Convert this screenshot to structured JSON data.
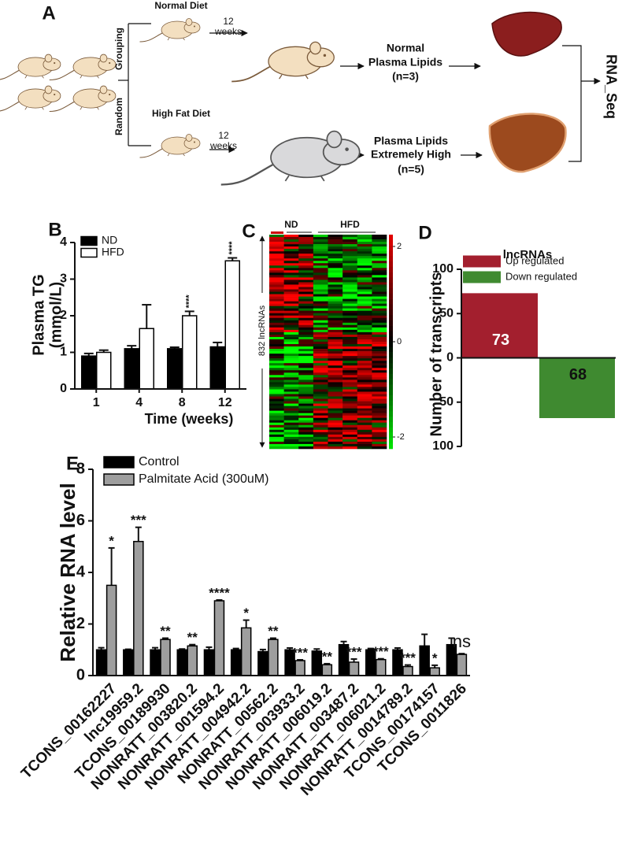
{
  "diagram": {
    "label": "A",
    "normal_diet": "Normal Diet",
    "high_fat_diet": "High Fat Diet",
    "durations": [
      [
        "12",
        "weeks"
      ],
      [
        "12",
        "weeks"
      ]
    ],
    "grouping": "Grouping",
    "random": "Random",
    "normal_result": [
      "Normal",
      "Plasma Lipids",
      "(n=3)"
    ],
    "high_result": [
      "Plasma Lipids",
      "Extremely High",
      "(n=5)"
    ],
    "output": "RNA_Seq"
  },
  "chart_data": [
    {
      "type": "bar",
      "panel_label": "B",
      "y_label": [
        "Plasma TG",
        "(mmol/L)"
      ],
      "x_label": "Time (weeks)",
      "categories": [
        "1",
        "4",
        "8",
        "12"
      ],
      "series": [
        {
          "name": "ND",
          "color": "#000000",
          "values": [
            0.9,
            1.1,
            1.1,
            1.15
          ],
          "errors": [
            0.07,
            0.08,
            0.04,
            0.12
          ]
        },
        {
          "name": "HFD",
          "color": "#ffffff",
          "values": [
            1.0,
            1.65,
            2.0,
            3.5
          ],
          "errors": [
            0.06,
            0.65,
            0.12,
            0.08
          ]
        }
      ],
      "annotations": [
        null,
        null,
        "****",
        "****"
      ],
      "ylim": [
        0,
        4
      ],
      "yticks": [
        0,
        1,
        2,
        3,
        4
      ]
    },
    {
      "type": "heatmap",
      "panel_label": "C",
      "column_groups": [
        "ND",
        "HFD"
      ],
      "row_label": "832 lncRNAs",
      "colorbar_lim": [
        -2,
        2
      ],
      "colorbar_ticks": [
        2,
        0,
        -2
      ]
    },
    {
      "type": "bar",
      "panel_label": "D",
      "title": "lncRNAs",
      "y_label": "Number of transcripts",
      "series": [
        {
          "name": "Up regulated",
          "color": "#a31f2e",
          "values": [
            73
          ],
          "value_labels": [
            "73"
          ]
        },
        {
          "name": "Down regulated",
          "color": "#3f8a30",
          "values": [
            -68
          ],
          "value_labels": [
            "68"
          ]
        }
      ],
      "ylim": [
        -100,
        100
      ],
      "yticks": [
        {
          "value": -100,
          "label": "100"
        },
        {
          "value": -50,
          "label": "50"
        },
        0,
        50,
        100
      ]
    },
    {
      "type": "bar",
      "panel_label": "E",
      "y_label": "Relative RNA  level",
      "categories": [
        "TCONS_00162227",
        "lnc19959.2",
        "TCONS_00189930",
        "NONRATT_003820.2",
        "NONRATT_001594.2",
        "NONRATT_004942.2",
        "NONRATT_00562.2",
        "NONRATT_003933.2",
        "NONRATT_006019.2",
        "NONRATT_003487.2",
        "NONRATT_006021.2",
        "NONRATT_0014789.2",
        "TCONS_00174157",
        "TCONS_0011826"
      ],
      "series": [
        {
          "name": "Control",
          "color": "#000000",
          "values": [
            1.0,
            1.0,
            1.0,
            1.0,
            1.0,
            1.0,
            0.93,
            1.0,
            0.95,
            1.2,
            1.0,
            1.0,
            1.15,
            1.2
          ],
          "errors": [
            0.08,
            0.02,
            0.08,
            0.03,
            0.1,
            0.05,
            0.08,
            0.07,
            0.08,
            0.12,
            0.05,
            0.07,
            0.45,
            0.25
          ]
        },
        {
          "name": "Palmitate Acid (300uM)",
          "color": "#9e9e9e",
          "values": [
            3.5,
            5.2,
            1.4,
            1.15,
            2.9,
            1.85,
            1.4,
            0.58,
            0.42,
            0.52,
            0.62,
            0.35,
            0.3,
            0.82
          ],
          "errors": [
            1.45,
            0.55,
            0.05,
            0.05,
            0.03,
            0.3,
            0.05,
            0.03,
            0.04,
            0.12,
            0.03,
            0.06,
            0.1,
            0.03
          ]
        }
      ],
      "annotations": [
        "*",
        "***",
        "**",
        "**",
        "****",
        "*",
        "**",
        "***",
        "**",
        "***",
        "***",
        "***",
        "*",
        "ns"
      ],
      "ylim": [
        0,
        8
      ],
      "yticks": [
        0,
        2,
        4,
        6,
        8
      ]
    }
  ]
}
